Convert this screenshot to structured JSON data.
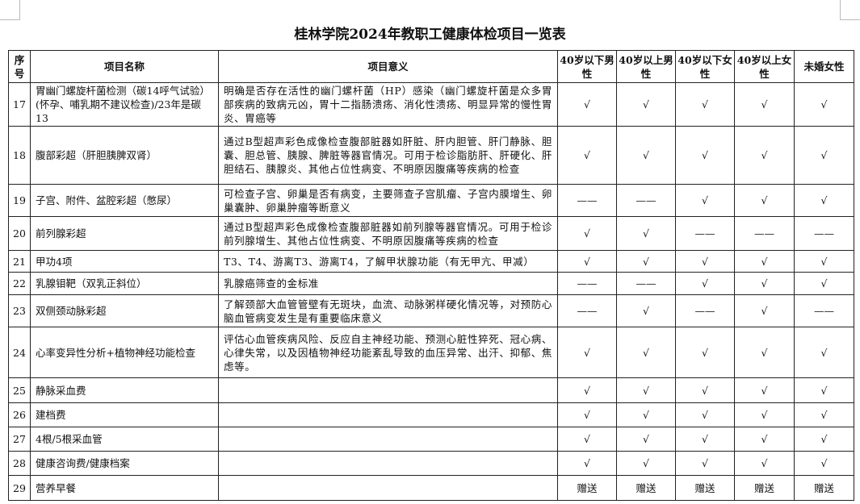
{
  "title": "桂林学院2024年教职工健康体检项目一览表",
  "headers": [
    "序号",
    "项目名称",
    "项目意义",
    "40岁以下男性",
    "40岁以上男性",
    "40岁以下女性",
    "40岁以上女性",
    "未婚女性"
  ],
  "marks": {
    "check": "√",
    "none": "——",
    "gift": "赠送"
  },
  "rows": [
    {
      "no": "17",
      "name": "胃幽门螺旋杆菌检测（碳14呼气试验）(怀孕、哺乳期不建议检查)/23年是碳13",
      "desc": "明确是否存在活性的幽门螺杆菌（HP）感染（幽门螺旋杆菌是众多胃部疾病的致病元凶，胃十二指肠溃疡、消化性溃疡、明显异常的慢性胃炎、胃癌等",
      "cols": [
        "√",
        "√",
        "√",
        "√",
        "√"
      ],
      "h": 54
    },
    {
      "no": "18",
      "name": "腹部彩超（肝胆胰脾双肾）",
      "desc": "通过B型超声彩色成像检查腹部脏器如肝脏、肝内胆管、肝门静脉、胆囊、胆总管、胰腺、脾脏等器官情况。可用于检诊脂肪肝、肝硬化、肝胆结石、胰腺炎、其他占位性病变、不明原因腹痛等疾病的检查",
      "cols": [
        "√",
        "√",
        "√",
        "√",
        "√"
      ],
      "h": 72
    },
    {
      "no": "19",
      "name": "子宫、附件、盆腔彩超（憋尿）",
      "desc": "可检查子宫、卵巢是否有病变，主要筛查子宫肌瘤、子宫内膜增生、卵巢囊肿、卵巢肿瘤等断意义",
      "cols": [
        "——",
        "——",
        "√",
        "√",
        "√"
      ],
      "h": 40
    },
    {
      "no": "20",
      "name": "前列腺彩超",
      "desc": "通过B型超声彩色成像检查腹部脏器如前列腺等器官情况。可用于检诊前列腺增生、其他占位性病变、不明原因腹痛等疾病的检查",
      "cols": [
        "√",
        "√",
        "——",
        "——",
        "——"
      ],
      "h": 42
    },
    {
      "no": "21",
      "name": "甲功4项",
      "desc": "T3、T4、游离T3、游离T4，了解甲状腺功能（有无甲亢、甲减）",
      "cols": [
        "√",
        "√",
        "√",
        "√",
        "√"
      ],
      "h": 27
    },
    {
      "no": "22",
      "name": "乳腺钼靶（双乳正斜位）",
      "desc": "乳腺癌筛查的金标准",
      "cols": [
        "——",
        "——",
        "√",
        "√",
        "√"
      ],
      "h": 28
    },
    {
      "no": "23",
      "name": "双侧颈动脉彩超",
      "desc": "了解颈部大血管管壁有无斑块，血流、动脉粥样硬化情况等，对预防心脑血管病变发生是有重要临床意义",
      "cols": [
        "——",
        "√",
        "——",
        "√",
        "——"
      ],
      "h": 40
    },
    {
      "no": "24",
      "name": "心率变异性分析+植物神经功能检查",
      "desc": "评估心血管疾病风险、反应自主神经功能、预测心脏性猝死、冠心病、心律失常，以及因植物神经功能紊乱导致的血压异常、出汗、抑郁、焦虑等。",
      "cols": [
        "√",
        "√",
        "√",
        "√",
        "√"
      ],
      "h": 63
    },
    {
      "no": "25",
      "name": "静脉采血费",
      "desc": "",
      "cols": [
        "√",
        "√",
        "√",
        "√",
        "√"
      ],
      "h": 31
    },
    {
      "no": "26",
      "name": "建档费",
      "desc": "",
      "cols": [
        "√",
        "√",
        "√",
        "√",
        "√"
      ],
      "h": 30
    },
    {
      "no": "27",
      "name": "4根/5根采血管",
      "desc": "",
      "cols": [
        "√",
        "√",
        "√",
        "√",
        "√"
      ],
      "h": 30
    },
    {
      "no": "28",
      "name": "健康咨询费/健康档案",
      "desc": "",
      "cols": [
        "√",
        "√",
        "√",
        "√",
        "√"
      ],
      "h": 30
    },
    {
      "no": "29",
      "name": "营养早餐",
      "desc": "",
      "cols": [
        "赠送",
        "赠送",
        "赠送",
        "赠送",
        "赠送"
      ],
      "h": 31
    }
  ]
}
